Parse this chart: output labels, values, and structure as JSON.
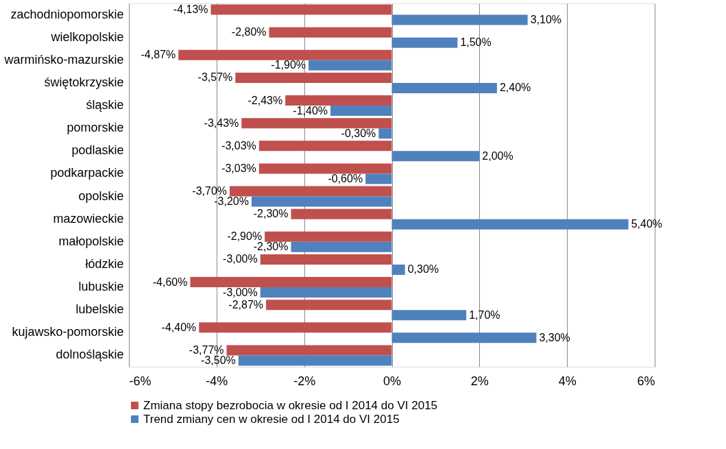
{
  "chart_data": {
    "type": "bar",
    "orientation": "horizontal",
    "categories": [
      "zachodniopomorskie",
      "wielkopolskie",
      "warmińsko-mazurskie",
      "świętokrzyskie",
      "śląskie",
      "pomorskie",
      "podlaskie",
      "podkarpackie",
      "opolskie",
      "mazowieckie",
      "małopolskie",
      "łódzkie",
      "lubuskie",
      "lubelskie",
      "kujawsko-pomorskie",
      "dolnośląskie"
    ],
    "series": [
      {
        "name": "Zmiana stopy bezrobocia w okresie od I 2014 do VI 2015",
        "color": "#c0504d",
        "values": [
          -4.13,
          -2.8,
          -4.87,
          -3.57,
          -2.43,
          -3.43,
          -3.03,
          -3.03,
          -3.7,
          -2.3,
          -2.9,
          -3.0,
          -4.6,
          -2.87,
          -4.4,
          -3.77
        ],
        "value_labels": [
          "-4,13%",
          "-2,80%",
          "-4,87%",
          "-3,57%",
          "-2,43%",
          "-3,43%",
          "-3,03%",
          "-3,03%",
          "-3,70%",
          "-2,30%",
          "-2,90%",
          "-3,00%",
          "-4,60%",
          "-2,87%",
          "-4,40%",
          "-3,77%"
        ]
      },
      {
        "name": "Trend zmiany cen w okresie od I 2014 do VI 2015",
        "color": "#4f81bd",
        "values": [
          3.1,
          1.5,
          -1.9,
          2.4,
          -1.4,
          -0.3,
          2.0,
          -0.6,
          -3.2,
          5.4,
          -2.3,
          0.3,
          -3.0,
          1.7,
          3.3,
          -3.5
        ],
        "value_labels": [
          "3,10%",
          "1,50%",
          "-1,90%",
          "2,40%",
          "-1,40%",
          "-0,30%",
          "2,00%",
          "-0,60%",
          "-3,20%",
          "5,40%",
          "-2,30%",
          "0,30%",
          "-3,00%",
          "1,70%",
          "3,30%",
          "-3,50%"
        ]
      }
    ],
    "xlim": [
      -6,
      6
    ],
    "xticks": [
      {
        "value": -6,
        "label": "-6%"
      },
      {
        "value": -4,
        "label": "-4%"
      },
      {
        "value": -2,
        "label": "-2%"
      },
      {
        "value": 0,
        "label": "0%"
      },
      {
        "value": 2,
        "label": "2%"
      },
      {
        "value": 4,
        "label": "4%"
      },
      {
        "value": 6,
        "label": "6%"
      }
    ],
    "grid": "x",
    "legend": "bottom"
  }
}
